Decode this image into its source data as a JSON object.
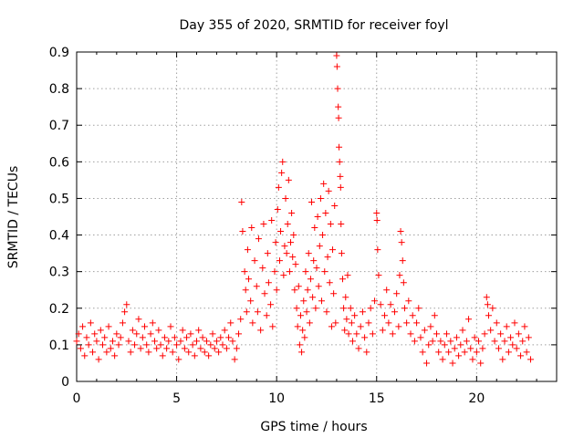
{
  "chart_data": {
    "type": "scatter",
    "title": "Day 355 of 2020, SRMTID for receiver foyl",
    "xlabel": "GPS time / hours",
    "ylabel": "SRMTID / TECUs",
    "xlim": [
      0,
      24
    ],
    "ylim": [
      0,
      0.9
    ],
    "xticks": [
      0,
      5,
      10,
      15,
      20
    ],
    "xtick_labels": [
      "0",
      "5",
      "10",
      "15",
      "20"
    ],
    "yticks": [
      0,
      0.1,
      0.2,
      0.3,
      0.4,
      0.5,
      0.6,
      0.7,
      0.8,
      0.9
    ],
    "ytick_labels": [
      "0",
      "0.1",
      "0.2",
      "0.3",
      "0.4",
      "0.5",
      "0.6",
      "0.7",
      "0.8",
      "0.9"
    ],
    "grid": true,
    "marker": "plus",
    "color": "#ff0000",
    "series": [
      {
        "name": "SRMTID",
        "points": [
          [
            0.0,
            0.11
          ],
          [
            0.1,
            0.13
          ],
          [
            0.2,
            0.09
          ],
          [
            0.3,
            0.15
          ],
          [
            0.4,
            0.07
          ],
          [
            0.5,
            0.12
          ],
          [
            0.6,
            0.1
          ],
          [
            0.7,
            0.16
          ],
          [
            0.8,
            0.08
          ],
          [
            0.9,
            0.13
          ],
          [
            1.0,
            0.11
          ],
          [
            1.1,
            0.06
          ],
          [
            1.2,
            0.14
          ],
          [
            1.3,
            0.1
          ],
          [
            1.4,
            0.12
          ],
          [
            1.5,
            0.08
          ],
          [
            1.6,
            0.15
          ],
          [
            1.7,
            0.09
          ],
          [
            1.8,
            0.11
          ],
          [
            1.9,
            0.07
          ],
          [
            2.0,
            0.13
          ],
          [
            2.1,
            0.1
          ],
          [
            2.2,
            0.12
          ],
          [
            2.3,
            0.16
          ],
          [
            2.4,
            0.19
          ],
          [
            2.5,
            0.21
          ],
          [
            2.6,
            0.11
          ],
          [
            2.7,
            0.08
          ],
          [
            2.8,
            0.14
          ],
          [
            2.9,
            0.1
          ],
          [
            3.0,
            0.13
          ],
          [
            3.1,
            0.17
          ],
          [
            3.2,
            0.09
          ],
          [
            3.3,
            0.12
          ],
          [
            3.4,
            0.15
          ],
          [
            3.5,
            0.1
          ],
          [
            3.6,
            0.08
          ],
          [
            3.7,
            0.13
          ],
          [
            3.8,
            0.16
          ],
          [
            3.9,
            0.11
          ],
          [
            4.0,
            0.09
          ],
          [
            4.1,
            0.14
          ],
          [
            4.2,
            0.1
          ],
          [
            4.3,
            0.07
          ],
          [
            4.4,
            0.12
          ],
          [
            4.5,
            0.09
          ],
          [
            4.6,
            0.11
          ],
          [
            4.7,
            0.15
          ],
          [
            4.8,
            0.08
          ],
          [
            4.9,
            0.12
          ],
          [
            5.0,
            0.1
          ],
          [
            5.1,
            0.06
          ],
          [
            5.2,
            0.11
          ],
          [
            5.3,
            0.14
          ],
          [
            5.4,
            0.09
          ],
          [
            5.5,
            0.12
          ],
          [
            5.6,
            0.08
          ],
          [
            5.7,
            0.13
          ],
          [
            5.8,
            0.1
          ],
          [
            5.9,
            0.07
          ],
          [
            6.0,
            0.11
          ],
          [
            6.1,
            0.14
          ],
          [
            6.2,
            0.09
          ],
          [
            6.3,
            0.12
          ],
          [
            6.4,
            0.08
          ],
          [
            6.5,
            0.11
          ],
          [
            6.6,
            0.07
          ],
          [
            6.7,
            0.1
          ],
          [
            6.8,
            0.13
          ],
          [
            6.9,
            0.09
          ],
          [
            7.0,
            0.11
          ],
          [
            7.1,
            0.08
          ],
          [
            7.2,
            0.12
          ],
          [
            7.3,
            0.1
          ],
          [
            7.4,
            0.14
          ],
          [
            7.5,
            0.09
          ],
          [
            7.6,
            0.12
          ],
          [
            7.7,
            0.16
          ],
          [
            7.8,
            0.11
          ],
          [
            7.9,
            0.06
          ],
          [
            8.0,
            0.09
          ],
          [
            8.1,
            0.13
          ],
          [
            8.2,
            0.17
          ],
          [
            8.25,
            0.49
          ],
          [
            8.3,
            0.41
          ],
          [
            8.4,
            0.3
          ],
          [
            8.45,
            0.25
          ],
          [
            8.5,
            0.19
          ],
          [
            8.55,
            0.36
          ],
          [
            8.6,
            0.28
          ],
          [
            8.7,
            0.22
          ],
          [
            8.75,
            0.42
          ],
          [
            8.8,
            0.16
          ],
          [
            8.9,
            0.33
          ],
          [
            9.0,
            0.26
          ],
          [
            9.05,
            0.19
          ],
          [
            9.1,
            0.39
          ],
          [
            9.2,
            0.14
          ],
          [
            9.3,
            0.31
          ],
          [
            9.35,
            0.43
          ],
          [
            9.4,
            0.24
          ],
          [
            9.5,
            0.18
          ],
          [
            9.55,
            0.35
          ],
          [
            9.6,
            0.27
          ],
          [
            9.7,
            0.21
          ],
          [
            9.75,
            0.44
          ],
          [
            9.8,
            0.15
          ],
          [
            9.9,
            0.3
          ],
          [
            9.95,
            0.38
          ],
          [
            10.0,
            0.25
          ],
          [
            10.05,
            0.47
          ],
          [
            10.1,
            0.53
          ],
          [
            10.15,
            0.33
          ],
          [
            10.2,
            0.41
          ],
          [
            10.25,
            0.57
          ],
          [
            10.3,
            0.6
          ],
          [
            10.35,
            0.29
          ],
          [
            10.4,
            0.37
          ],
          [
            10.45,
            0.5
          ],
          [
            10.5,
            0.35
          ],
          [
            10.55,
            0.43
          ],
          [
            10.6,
            0.55
          ],
          [
            10.65,
            0.3
          ],
          [
            10.7,
            0.38
          ],
          [
            10.75,
            0.46
          ],
          [
            10.8,
            0.34
          ],
          [
            10.85,
            0.4
          ],
          [
            10.9,
            0.25
          ],
          [
            10.95,
            0.32
          ],
          [
            11.0,
            0.2
          ],
          [
            11.05,
            0.15
          ],
          [
            11.1,
            0.26
          ],
          [
            11.15,
            0.1
          ],
          [
            11.2,
            0.18
          ],
          [
            11.25,
            0.08
          ],
          [
            11.3,
            0.14
          ],
          [
            11.35,
            0.22
          ],
          [
            11.4,
            0.12
          ],
          [
            11.45,
            0.3
          ],
          [
            11.5,
            0.19
          ],
          [
            11.55,
            0.25
          ],
          [
            11.6,
            0.35
          ],
          [
            11.65,
            0.16
          ],
          [
            11.7,
            0.28
          ],
          [
            11.75,
            0.49
          ],
          [
            11.8,
            0.23
          ],
          [
            11.85,
            0.33
          ],
          [
            11.9,
            0.42
          ],
          [
            11.95,
            0.2
          ],
          [
            12.0,
            0.31
          ],
          [
            12.05,
            0.45
          ],
          [
            12.1,
            0.26
          ],
          [
            12.15,
            0.37
          ],
          [
            12.2,
            0.5
          ],
          [
            12.25,
            0.22
          ],
          [
            12.3,
            0.4
          ],
          [
            12.35,
            0.54
          ],
          [
            12.4,
            0.3
          ],
          [
            12.45,
            0.46
          ],
          [
            12.5,
            0.19
          ],
          [
            12.55,
            0.34
          ],
          [
            12.6,
            0.52
          ],
          [
            12.65,
            0.27
          ],
          [
            12.7,
            0.43
          ],
          [
            12.75,
            0.15
          ],
          [
            12.8,
            0.36
          ],
          [
            12.85,
            0.24
          ],
          [
            12.9,
            0.48
          ],
          [
            12.95,
            0.16
          ],
          [
            13.0,
            0.89
          ],
          [
            13.02,
            0.86
          ],
          [
            13.05,
            0.8
          ],
          [
            13.08,
            0.75
          ],
          [
            13.1,
            0.72
          ],
          [
            13.12,
            0.64
          ],
          [
            13.15,
            0.6
          ],
          [
            13.18,
            0.56
          ],
          [
            13.2,
            0.53
          ],
          [
            13.22,
            0.43
          ],
          [
            13.25,
            0.35
          ],
          [
            13.3,
            0.28
          ],
          [
            13.35,
            0.2
          ],
          [
            13.4,
            0.14
          ],
          [
            13.45,
            0.23
          ],
          [
            13.5,
            0.17
          ],
          [
            13.55,
            0.29
          ],
          [
            13.6,
            0.13
          ],
          [
            13.7,
            0.2
          ],
          [
            13.75,
            0.16
          ],
          [
            13.8,
            0.11
          ],
          [
            13.9,
            0.18
          ],
          [
            14.0,
            0.13
          ],
          [
            14.1,
            0.09
          ],
          [
            14.2,
            0.15
          ],
          [
            14.3,
            0.19
          ],
          [
            14.4,
            0.12
          ],
          [
            14.5,
            0.08
          ],
          [
            14.6,
            0.16
          ],
          [
            14.7,
            0.2
          ],
          [
            14.8,
            0.13
          ],
          [
            14.9,
            0.22
          ],
          [
            15.0,
            0.46
          ],
          [
            15.02,
            0.44
          ],
          [
            15.05,
            0.36
          ],
          [
            15.1,
            0.29
          ],
          [
            15.2,
            0.21
          ],
          [
            15.3,
            0.14
          ],
          [
            15.4,
            0.18
          ],
          [
            15.5,
            0.25
          ],
          [
            15.6,
            0.16
          ],
          [
            15.7,
            0.21
          ],
          [
            15.8,
            0.13
          ],
          [
            15.9,
            0.19
          ],
          [
            16.0,
            0.24
          ],
          [
            16.1,
            0.15
          ],
          [
            16.15,
            0.29
          ],
          [
            16.2,
            0.41
          ],
          [
            16.25,
            0.38
          ],
          [
            16.3,
            0.33
          ],
          [
            16.35,
            0.27
          ],
          [
            16.4,
            0.2
          ],
          [
            16.5,
            0.16
          ],
          [
            16.6,
            0.22
          ],
          [
            16.7,
            0.13
          ],
          [
            16.8,
            0.18
          ],
          [
            16.9,
            0.11
          ],
          [
            17.0,
            0.16
          ],
          [
            17.1,
            0.2
          ],
          [
            17.2,
            0.12
          ],
          [
            17.3,
            0.08
          ],
          [
            17.4,
            0.14
          ],
          [
            17.5,
            0.05
          ],
          [
            17.6,
            0.1
          ],
          [
            17.7,
            0.15
          ],
          [
            17.8,
            0.11
          ],
          [
            17.9,
            0.18
          ],
          [
            18.0,
            0.13
          ],
          [
            18.1,
            0.08
          ],
          [
            18.2,
            0.11
          ],
          [
            18.3,
            0.06
          ],
          [
            18.4,
            0.1
          ],
          [
            18.5,
            0.13
          ],
          [
            18.6,
            0.08
          ],
          [
            18.7,
            0.11
          ],
          [
            18.8,
            0.05
          ],
          [
            18.9,
            0.09
          ],
          [
            19.0,
            0.12
          ],
          [
            19.1,
            0.07
          ],
          [
            19.2,
            0.1
          ],
          [
            19.3,
            0.14
          ],
          [
            19.4,
            0.08
          ],
          [
            19.5,
            0.11
          ],
          [
            19.6,
            0.17
          ],
          [
            19.7,
            0.09
          ],
          [
            19.8,
            0.06
          ],
          [
            19.9,
            0.12
          ],
          [
            20.0,
            0.08
          ],
          [
            20.1,
            0.11
          ],
          [
            20.2,
            0.05
          ],
          [
            20.3,
            0.09
          ],
          [
            20.4,
            0.13
          ],
          [
            20.5,
            0.23
          ],
          [
            20.55,
            0.21
          ],
          [
            20.6,
            0.18
          ],
          [
            20.7,
            0.14
          ],
          [
            20.8,
            0.2
          ],
          [
            20.9,
            0.11
          ],
          [
            21.0,
            0.16
          ],
          [
            21.1,
            0.09
          ],
          [
            21.2,
            0.13
          ],
          [
            21.3,
            0.06
          ],
          [
            21.4,
            0.11
          ],
          [
            21.5,
            0.15
          ],
          [
            21.6,
            0.08
          ],
          [
            21.7,
            0.12
          ],
          [
            21.8,
            0.1
          ],
          [
            21.9,
            0.16
          ],
          [
            22.0,
            0.09
          ],
          [
            22.1,
            0.13
          ],
          [
            22.2,
            0.07
          ],
          [
            22.3,
            0.11
          ],
          [
            22.4,
            0.15
          ],
          [
            22.5,
            0.08
          ],
          [
            22.6,
            0.12
          ],
          [
            22.7,
            0.06
          ]
        ]
      }
    ]
  }
}
